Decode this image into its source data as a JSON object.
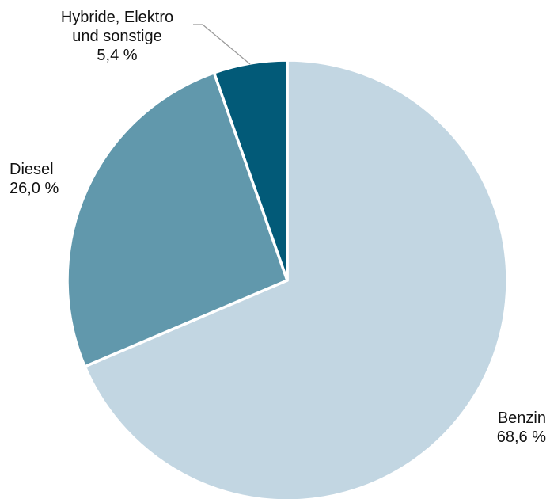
{
  "chart_data": {
    "type": "pie",
    "slices": [
      {
        "name": "Benzin",
        "value": 68.6,
        "value_label": "68,6 %",
        "color": "#c2d6e2"
      },
      {
        "name": "Diesel",
        "value": 26.0,
        "value_label": "26,0 %",
        "color": "#6198ac"
      },
      {
        "name_lines": [
          "Hybride, Elektro",
          "und sonstige"
        ],
        "name": "Hybride, Elektro und sonstige",
        "value": 5.4,
        "value_label": "5,4 %",
        "color": "#025a78"
      }
    ],
    "start": "top",
    "direction": "clockwise",
    "legend": "none"
  }
}
